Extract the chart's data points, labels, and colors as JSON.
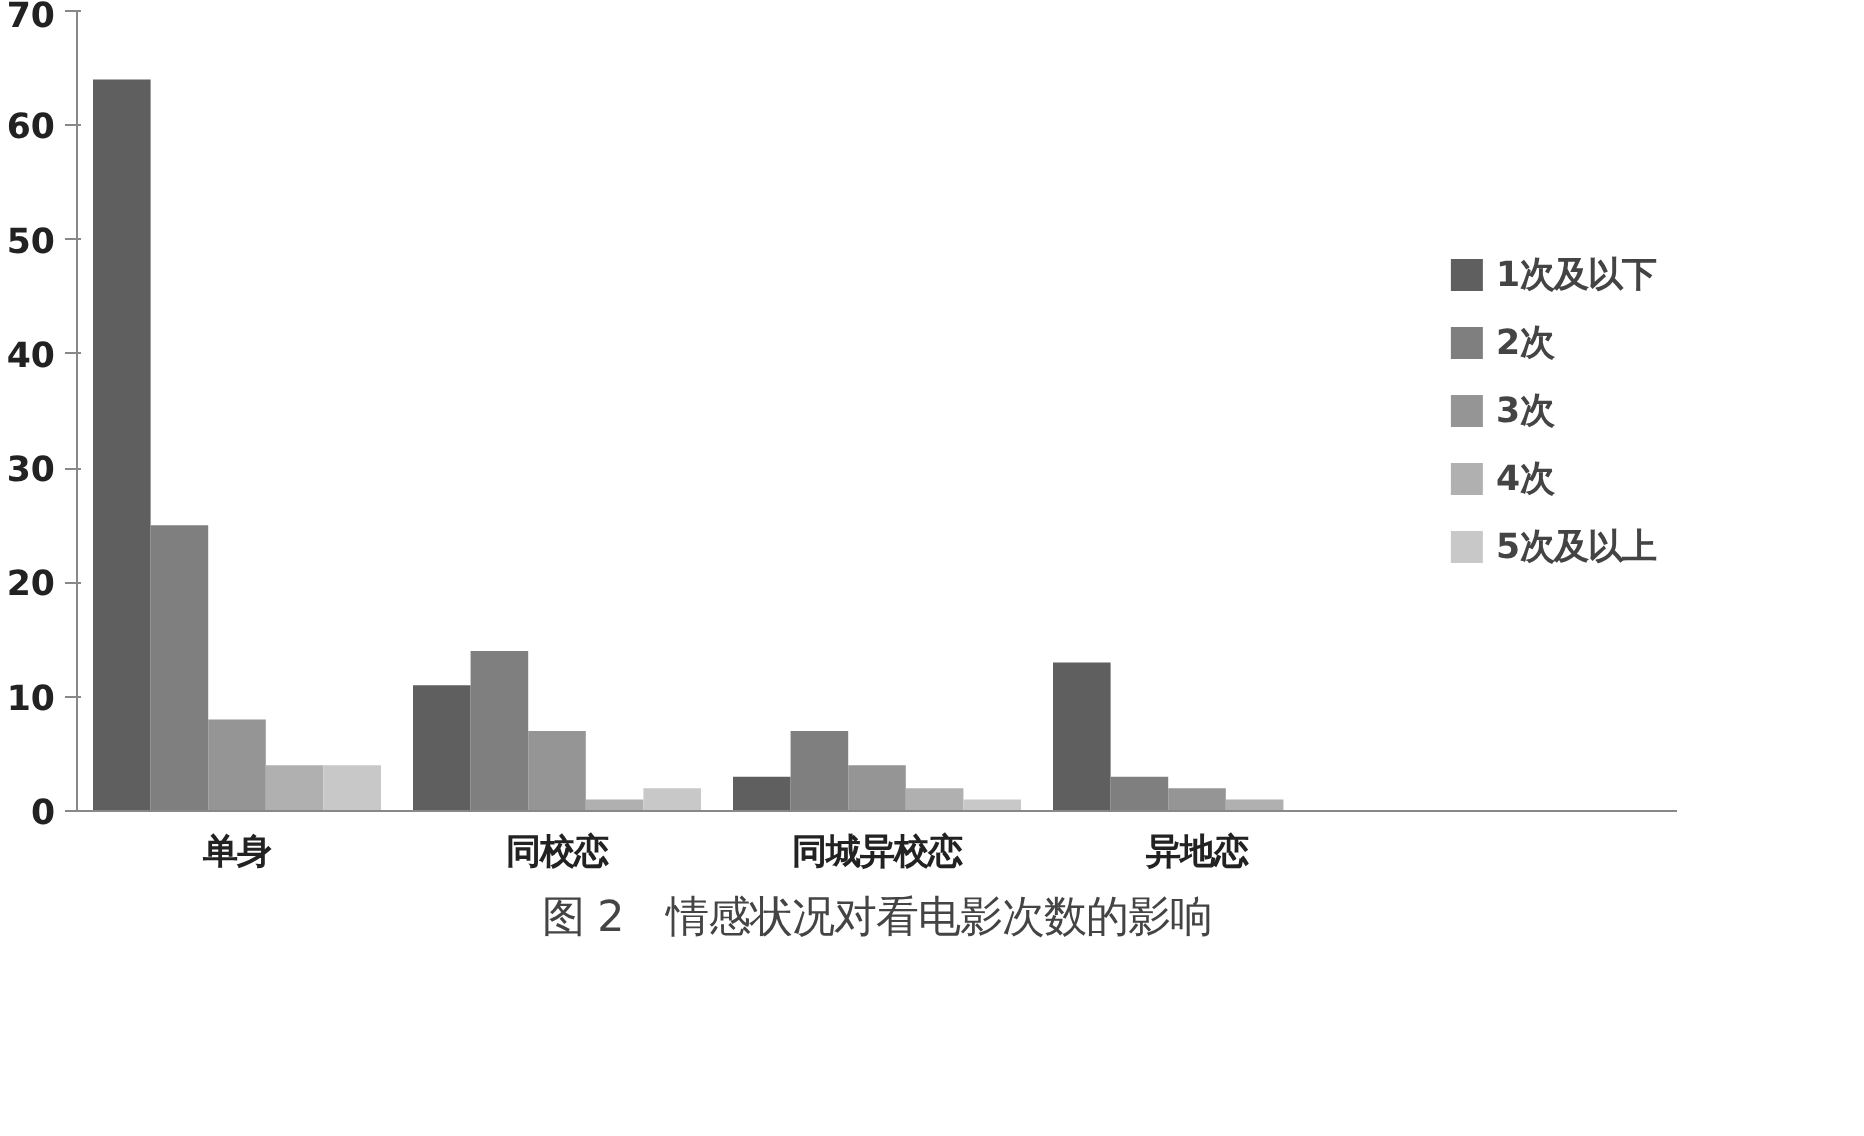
{
  "chart_data": {
    "type": "bar",
    "title": "图 2　情感状况对看电影次数的影响",
    "categories": [
      "单身",
      "同校恋",
      "同城异校恋",
      "异地恋"
    ],
    "series": [
      {
        "name": "1次及以下",
        "color": "#5f5f5f",
        "values": [
          64,
          11,
          3,
          13
        ]
      },
      {
        "name": "2次",
        "color": "#7f7f7f",
        "values": [
          25,
          14,
          7,
          3
        ]
      },
      {
        "name": "3次",
        "color": "#959595",
        "values": [
          8,
          7,
          4,
          2
        ]
      },
      {
        "name": "4次",
        "color": "#b0b0b0",
        "values": [
          4,
          1,
          2,
          1
        ]
      },
      {
        "name": "5次及以上",
        "color": "#c8c8c8",
        "values": [
          4,
          2,
          1,
          0
        ]
      }
    ],
    "ylim": [
      0,
      70
    ],
    "yticks": [
      0,
      10,
      20,
      30,
      40,
      50,
      60,
      70
    ],
    "grid": false,
    "legend": "right"
  }
}
